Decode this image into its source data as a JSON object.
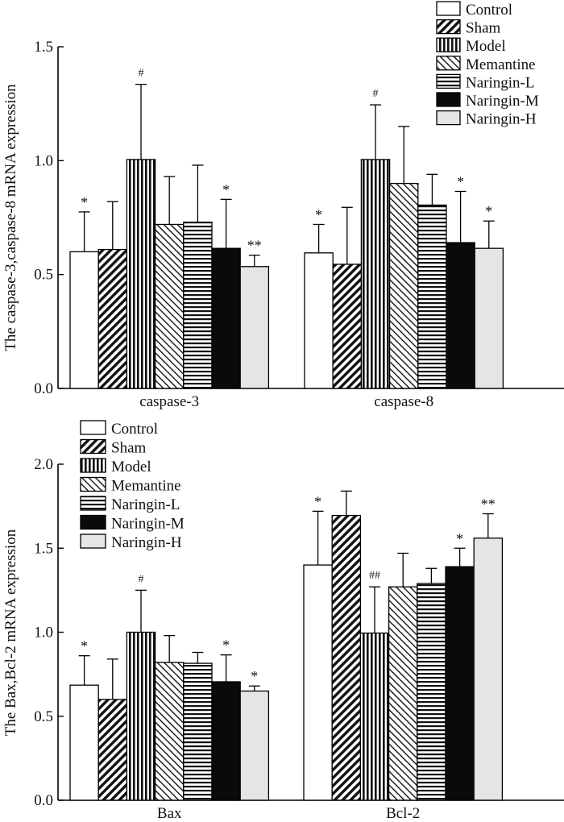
{
  "chart_data": [
    {
      "type": "bar",
      "ylabel": "The caspase-3,caspase-8 mRNA expression",
      "ylim": [
        0,
        1.5
      ],
      "yticks": [
        "0.0",
        "0.5",
        "1.0",
        "1.5"
      ],
      "categories": [
        "caspase-3",
        "caspase-8"
      ],
      "legend_position": "top-right",
      "series": [
        {
          "name": "Control",
          "values": [
            0.6,
            0.595
          ],
          "errors": [
            0.175,
            0.125
          ],
          "labels": [
            "*",
            "*"
          ]
        },
        {
          "name": "Sham",
          "values": [
            0.61,
            0.545
          ],
          "errors": [
            0.21,
            0.25
          ],
          "labels": [
            "",
            ""
          ]
        },
        {
          "name": "Model",
          "values": [
            1.005,
            1.005
          ],
          "errors": [
            0.33,
            0.24
          ],
          "labels": [
            "#",
            "#"
          ]
        },
        {
          "name": "Memantine",
          "values": [
            0.72,
            0.9
          ],
          "errors": [
            0.21,
            0.25
          ],
          "labels": [
            "",
            ""
          ]
        },
        {
          "name": "Naringin-L",
          "values": [
            0.73,
            0.805
          ],
          "errors": [
            0.25,
            0.135
          ],
          "labels": [
            "",
            ""
          ]
        },
        {
          "name": "Naringin-M",
          "values": [
            0.615,
            0.64
          ],
          "errors": [
            0.215,
            0.225
          ],
          "labels": [
            "*",
            "*"
          ]
        },
        {
          "name": "Naringin-H",
          "values": [
            0.535,
            0.615
          ],
          "errors": [
            0.05,
            0.12
          ],
          "labels": [
            "**",
            "*"
          ]
        }
      ]
    },
    {
      "type": "bar",
      "ylabel": "The Bax,Bcl-2 mRNA expression",
      "ylim": [
        0,
        2.0
      ],
      "yticks": [
        "0.0",
        "0.5",
        "1.0",
        "1.5",
        "2.0"
      ],
      "categories": [
        "Bax",
        "Bcl-2"
      ],
      "legend_position": "top-left",
      "series": [
        {
          "name": "Control",
          "values": [
            0.685,
            1.4
          ],
          "errors": [
            0.175,
            0.32
          ],
          "labels": [
            "*",
            "*"
          ]
        },
        {
          "name": "Sham",
          "values": [
            0.6,
            1.695
          ],
          "errors": [
            0.24,
            0.145
          ],
          "labels": [
            "",
            ""
          ]
        },
        {
          "name": "Model",
          "values": [
            1.0,
            0.995
          ],
          "errors": [
            0.25,
            0.275
          ],
          "labels": [
            "#",
            "##"
          ]
        },
        {
          "name": "Memantine",
          "values": [
            0.82,
            1.27
          ],
          "errors": [
            0.16,
            0.2
          ],
          "labels": [
            "",
            ""
          ]
        },
        {
          "name": "Naringin-L",
          "values": [
            0.815,
            1.29
          ],
          "errors": [
            0.065,
            0.09
          ],
          "labels": [
            "",
            ""
          ]
        },
        {
          "name": "Naringin-M",
          "values": [
            0.705,
            1.39
          ],
          "errors": [
            0.16,
            0.11
          ],
          "labels": [
            "*",
            "*"
          ]
        },
        {
          "name": "Naringin-H",
          "values": [
            0.65,
            1.56
          ],
          "errors": [
            0.03,
            0.145
          ],
          "labels": [
            "*",
            "**"
          ]
        }
      ]
    }
  ],
  "colors": {
    "Control": "#ffffff",
    "Naringin-M": "#0a0a0a",
    "Naringin-H": "#e5e5e5",
    "line": "#000000"
  }
}
